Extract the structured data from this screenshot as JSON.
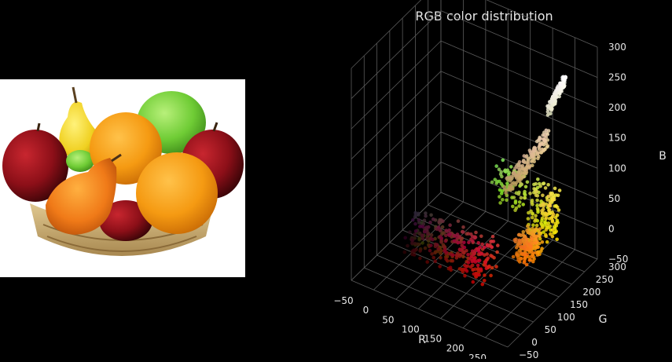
{
  "colors": {
    "background": "#000000",
    "photo_background": "#ffffff",
    "grid": "#5a5a5a",
    "axis_text": "#e6e6e6"
  },
  "photo": {
    "subject": "fruit-basket",
    "fruit_icons": [
      "red-apple-icon",
      "yellow-pear-icon",
      "green-apple-icon",
      "orange-icon",
      "orange-pear-icon",
      "wicker-basket-icon"
    ]
  },
  "chart_data": {
    "type": "scatter",
    "projection": "3d",
    "title": "RGB color distribution",
    "xlabel": "R",
    "ylabel": "G",
    "zlabel": "B",
    "xlim": [
      -50,
      300
    ],
    "ylim": [
      -50,
      300
    ],
    "zlim": [
      -50,
      300
    ],
    "x_ticks": [
      "−50",
      "0",
      "50",
      "100",
      "150",
      "200",
      "250",
      "300"
    ],
    "y_ticks": [
      "−50",
      "0",
      "50",
      "100",
      "150",
      "200",
      "250",
      "300"
    ],
    "z_ticks": [
      "−50",
      "0",
      "50",
      "100",
      "150",
      "200",
      "250",
      "300"
    ],
    "grid": true,
    "point_color": "rgb(r,g,b) of each pixel",
    "clusters": [
      {
        "cluster": "white highlights",
        "r": [
          230,
          255
        ],
        "g": [
          230,
          255
        ],
        "b": [
          200,
          255
        ]
      },
      {
        "cluster": "red apples",
        "r": [
          40,
          220
        ],
        "g": [
          0,
          60
        ],
        "b": [
          0,
          60
        ]
      },
      {
        "cluster": "oranges",
        "r": [
          220,
          255
        ],
        "g": [
          110,
          170
        ],
        "b": [
          0,
          40
        ]
      },
      {
        "cluster": "yellow pears",
        "r": [
          200,
          255
        ],
        "g": [
          200,
          240
        ],
        "b": [
          0,
          80
        ]
      },
      {
        "cluster": "green apples",
        "r": [
          120,
          190
        ],
        "g": [
          190,
          230
        ],
        "b": [
          30,
          90
        ]
      },
      {
        "cluster": "basket tan",
        "r": [
          180,
          240
        ],
        "g": [
          150,
          210
        ],
        "b": [
          90,
          170
        ]
      }
    ]
  }
}
